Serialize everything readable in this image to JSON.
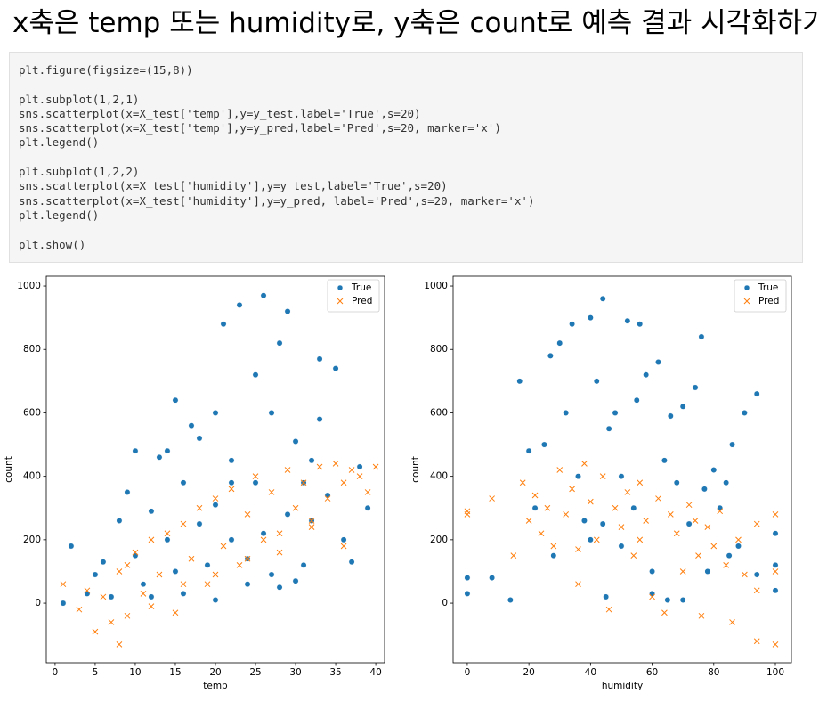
{
  "header": {
    "title": "x축은 temp 또는 humidity로, y축은 count로 예측 결과 시각화하기"
  },
  "code": {
    "blocks": [
      [
        "plt.figure(figsize=(15,8))"
      ],
      [
        "plt.subplot(1,2,1)",
        "sns.scatterplot(x=X_test['temp'],y=y_test,label='True',s=20)",
        "sns.scatterplot(x=X_test['temp'],y=y_pred,label='Pred',s=20, marker='x')",
        "plt.legend()"
      ],
      [
        "plt.subplot(1,2,2)",
        "sns.scatterplot(x=X_test['humidity'],y=y_test,label='True',s=20)",
        "sns.scatterplot(x=X_test['humidity'],y=y_pred, label='Pred',s=20, marker='x')",
        "plt.legend()"
      ],
      [
        "plt.show()"
      ]
    ]
  },
  "chart_data": [
    {
      "type": "scatter",
      "xlabel": "temp",
      "ylabel": "count",
      "xlim": [
        -1.1,
        41.1
      ],
      "ylim": [
        -188,
        1031
      ],
      "xticks": [
        0,
        5,
        10,
        15,
        20,
        25,
        30,
        35,
        40
      ],
      "yticks": [
        0,
        200,
        400,
        600,
        800,
        1000
      ],
      "legend": "upper right",
      "series": [
        {
          "name": "True",
          "color": "#1f77b4",
          "marker": "o",
          "x": [
            1,
            2,
            4,
            5,
            6,
            7,
            8,
            9,
            10,
            10,
            11,
            12,
            13,
            14,
            15,
            15,
            16,
            17,
            18,
            19,
            20,
            20,
            21,
            22,
            22,
            23,
            24,
            25,
            25,
            26,
            27,
            27,
            28,
            29,
            29,
            30,
            31,
            31,
            32,
            33,
            33,
            34,
            35,
            36,
            37,
            38,
            39,
            24,
            28,
            16,
            12,
            20,
            30,
            26,
            14,
            18,
            22,
            32
          ],
          "values": [
            0,
            180,
            30,
            90,
            130,
            20,
            260,
            350,
            480,
            150,
            60,
            290,
            460,
            200,
            640,
            100,
            380,
            560,
            250,
            120,
            600,
            310,
            880,
            200,
            450,
            940,
            140,
            720,
            380,
            970,
            90,
            600,
            820,
            280,
            920,
            510,
            380,
            120,
            260,
            770,
            580,
            340,
            740,
            200,
            130,
            430,
            300,
            60,
            50,
            30,
            20,
            10,
            70,
            220,
            480,
            520,
            380,
            450
          ]
        },
        {
          "name": "Pred",
          "color": "#ff7f0e",
          "marker": "x",
          "x": [
            1,
            3,
            4,
            5,
            6,
            7,
            8,
            9,
            9,
            10,
            11,
            12,
            13,
            14,
            15,
            16,
            17,
            18,
            19,
            20,
            21,
            22,
            23,
            24,
            25,
            26,
            27,
            28,
            29,
            30,
            31,
            32,
            33,
            34,
            35,
            36,
            37,
            38,
            39,
            40,
            8,
            12,
            16,
            20,
            24,
            28,
            32,
            36
          ],
          "values": [
            60,
            -20,
            40,
            -90,
            20,
            -60,
            -130,
            120,
            -40,
            160,
            30,
            200,
            90,
            220,
            -30,
            250,
            140,
            300,
            60,
            330,
            180,
            360,
            120,
            280,
            400,
            200,
            350,
            160,
            420,
            300,
            380,
            240,
            430,
            330,
            440,
            380,
            420,
            400,
            350,
            430,
            100,
            -10,
            60,
            90,
            140,
            220,
            260,
            180
          ]
        }
      ]
    },
    {
      "type": "scatter",
      "xlabel": "humidity",
      "ylabel": "count",
      "xlim": [
        -4.6,
        105.2
      ],
      "ylim": [
        -188,
        1031
      ],
      "xticks": [
        0,
        20,
        40,
        60,
        80,
        100
      ],
      "yticks": [
        0,
        200,
        400,
        600,
        800,
        1000
      ],
      "legend": "upper right",
      "series": [
        {
          "name": "True",
          "color": "#1f77b4",
          "marker": "o",
          "x": [
            0,
            0,
            8,
            14,
            17,
            20,
            22,
            25,
            27,
            28,
            30,
            32,
            34,
            36,
            38,
            40,
            42,
            44,
            45,
            46,
            48,
            50,
            52,
            54,
            55,
            56,
            58,
            60,
            62,
            64,
            65,
            66,
            68,
            70,
            72,
            74,
            76,
            78,
            80,
            82,
            84,
            86,
            88,
            90,
            94,
            94,
            100,
            100,
            100,
            44,
            60,
            70,
            50,
            40,
            85,
            77
          ],
          "values": [
            80,
            30,
            80,
            10,
            700,
            480,
            300,
            500,
            780,
            150,
            820,
            600,
            880,
            400,
            260,
            900,
            700,
            960,
            20,
            550,
            600,
            180,
            890,
            300,
            640,
            880,
            720,
            100,
            760,
            450,
            10,
            590,
            380,
            620,
            250,
            680,
            840,
            100,
            420,
            300,
            380,
            500,
            180,
            600,
            660,
            90,
            220,
            40,
            120,
            250,
            30,
            10,
            400,
            200,
            150,
            360
          ]
        },
        {
          "name": "Pred",
          "color": "#ff7f0e",
          "marker": "x",
          "x": [
            0,
            0,
            8,
            15,
            18,
            20,
            22,
            24,
            26,
            28,
            30,
            32,
            34,
            36,
            38,
            40,
            42,
            44,
            46,
            48,
            50,
            52,
            54,
            56,
            58,
            60,
            62,
            64,
            66,
            68,
            70,
            72,
            74,
            76,
            78,
            80,
            82,
            84,
            86,
            88,
            90,
            94,
            94,
            94,
            100,
            100,
            100,
            36,
            56,
            75
          ],
          "values": [
            290,
            280,
            330,
            150,
            380,
            260,
            340,
            220,
            300,
            180,
            420,
            280,
            360,
            60,
            440,
            320,
            200,
            400,
            -20,
            300,
            240,
            350,
            150,
            380,
            260,
            20,
            330,
            -30,
            280,
            220,
            100,
            310,
            260,
            -40,
            240,
            180,
            290,
            120,
            -60,
            200,
            90,
            -120,
            40,
            250,
            -130,
            100,
            280,
            170,
            200,
            150
          ]
        }
      ]
    }
  ]
}
